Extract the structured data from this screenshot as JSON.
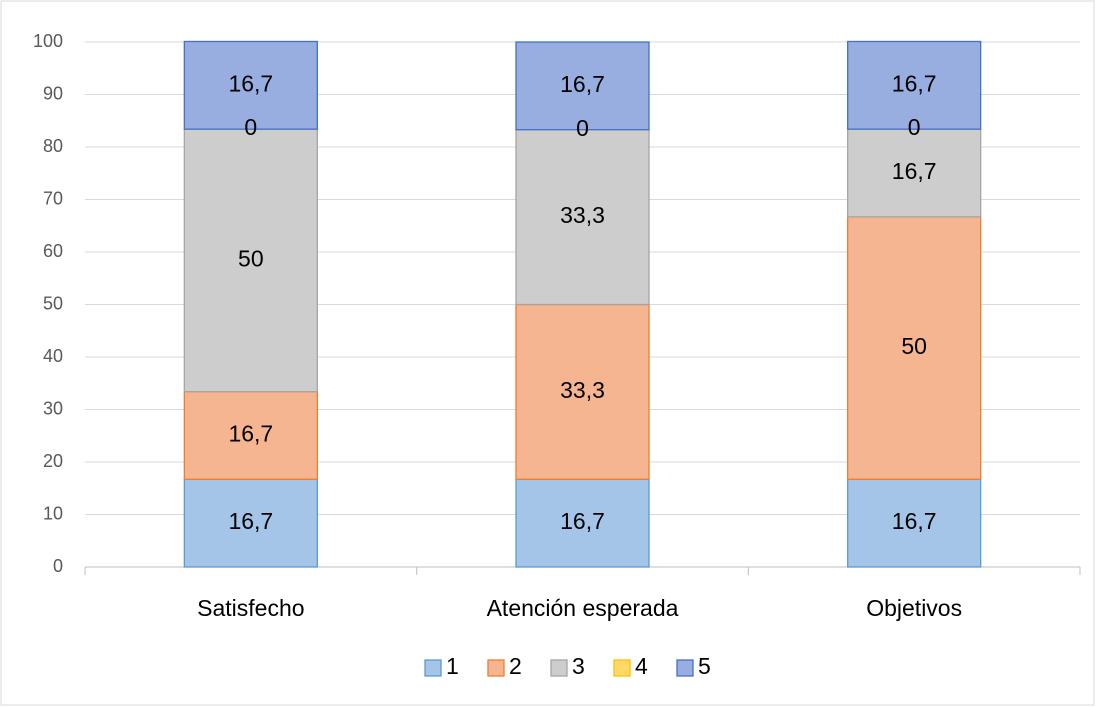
{
  "chart_data": {
    "type": "stacked_bar",
    "categories": [
      "Satisfecho",
      "Atención esperada",
      "Objetivos"
    ],
    "series": [
      {
        "name": "1",
        "color": "#a4c4e8",
        "edgecolor": "#5b9bd5",
        "values": [
          16.7,
          16.7,
          16.7
        ],
        "value_labels": [
          "16,7",
          "16,7",
          "16,7"
        ]
      },
      {
        "name": "2",
        "color": "#f5b591",
        "edgecolor": "#ed7d31",
        "values": [
          16.7,
          33.3,
          50
        ],
        "value_labels": [
          "16,7",
          "33,3",
          "50"
        ]
      },
      {
        "name": "3",
        "color": "#cdcdcd",
        "edgecolor": "#a5a5a5",
        "values": [
          50,
          33.3,
          16.7
        ],
        "value_labels": [
          "50",
          "33,3",
          "16,7"
        ]
      },
      {
        "name": "4",
        "color": "#ffd966",
        "edgecolor": "#ffc000",
        "values": [
          0,
          0,
          0
        ],
        "value_labels": [
          "0",
          "0",
          "0"
        ]
      },
      {
        "name": "5",
        "color": "#98ade0",
        "edgecolor": "#4472c4",
        "values": [
          16.7,
          16.7,
          16.7
        ],
        "value_labels": [
          "16,7",
          "16,7",
          "16,7"
        ]
      }
    ],
    "ylim": [
      0,
      100
    ],
    "yticks": [
      0,
      10,
      20,
      30,
      40,
      50,
      60,
      70,
      80,
      90,
      100
    ],
    "grid": true,
    "legend": "bottom"
  }
}
